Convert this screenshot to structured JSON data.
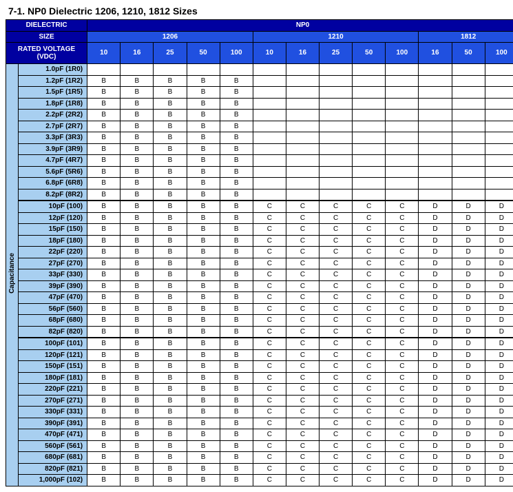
{
  "title": "7-1. NP0 Dielectric 1206, 1210, 1812 Sizes",
  "header": {
    "dielectric": "DIELECTRIC",
    "np0": "NP0",
    "size": "SIZE",
    "sizes": [
      "1206",
      "1210",
      "1812"
    ],
    "rated_voltage": "RATED VOLTAGE (VDC)",
    "voltages_1206": [
      "10",
      "16",
      "25",
      "50",
      "100"
    ],
    "voltages_1210": [
      "10",
      "16",
      "25",
      "50",
      "100"
    ],
    "voltages_1812": [
      "16",
      "50",
      "100"
    ]
  },
  "side_label": "Capacitance",
  "rows": [
    {
      "label": "1.0pF (1R0)",
      "v": [
        "",
        "",
        "",
        "",
        "",
        "",
        "",
        "",
        "",
        "",
        "",
        "",
        ""
      ]
    },
    {
      "label": "1.2pF (1R2)",
      "v": [
        "B",
        "B",
        "B",
        "B",
        "B",
        "",
        "",
        "",
        "",
        "",
        "",
        "",
        ""
      ]
    },
    {
      "label": "1.5pF (1R5)",
      "v": [
        "B",
        "B",
        "B",
        "B",
        "B",
        "",
        "",
        "",
        "",
        "",
        "",
        "",
        ""
      ]
    },
    {
      "label": "1.8pF (1R8)",
      "v": [
        "B",
        "B",
        "B",
        "B",
        "B",
        "",
        "",
        "",
        "",
        "",
        "",
        "",
        ""
      ]
    },
    {
      "label": "2.2pF (2R2)",
      "v": [
        "B",
        "B",
        "B",
        "B",
        "B",
        "",
        "",
        "",
        "",
        "",
        "",
        "",
        ""
      ]
    },
    {
      "label": "2.7pF (2R7)",
      "v": [
        "B",
        "B",
        "B",
        "B",
        "B",
        "",
        "",
        "",
        "",
        "",
        "",
        "",
        ""
      ]
    },
    {
      "label": "3.3pF (3R3)",
      "v": [
        "B",
        "B",
        "B",
        "B",
        "B",
        "",
        "",
        "",
        "",
        "",
        "",
        "",
        ""
      ]
    },
    {
      "label": "3.9pF (3R9)",
      "v": [
        "B",
        "B",
        "B",
        "B",
        "B",
        "",
        "",
        "",
        "",
        "",
        "",
        "",
        ""
      ]
    },
    {
      "label": "4.7pF (4R7)",
      "v": [
        "B",
        "B",
        "B",
        "B",
        "B",
        "",
        "",
        "",
        "",
        "",
        "",
        "",
        ""
      ]
    },
    {
      "label": "5.6pF (5R6)",
      "v": [
        "B",
        "B",
        "B",
        "B",
        "B",
        "",
        "",
        "",
        "",
        "",
        "",
        "",
        ""
      ]
    },
    {
      "label": "6.8pF (6R8)",
      "v": [
        "B",
        "B",
        "B",
        "B",
        "B",
        "",
        "",
        "",
        "",
        "",
        "",
        "",
        ""
      ]
    },
    {
      "label": "8.2pF (8R2)",
      "v": [
        "B",
        "B",
        "B",
        "B",
        "B",
        "",
        "",
        "",
        "",
        "",
        "",
        "",
        ""
      ]
    },
    {
      "label": "10pF (100)",
      "thick": true,
      "v": [
        "B",
        "B",
        "B",
        "B",
        "B",
        "C",
        "C",
        "C",
        "C",
        "C",
        "D",
        "D",
        "D"
      ]
    },
    {
      "label": "12pF (120)",
      "v": [
        "B",
        "B",
        "B",
        "B",
        "B",
        "C",
        "C",
        "C",
        "C",
        "C",
        "D",
        "D",
        "D"
      ]
    },
    {
      "label": "15pF (150)",
      "v": [
        "B",
        "B",
        "B",
        "B",
        "B",
        "C",
        "C",
        "C",
        "C",
        "C",
        "D",
        "D",
        "D"
      ]
    },
    {
      "label": "18pF (180)",
      "v": [
        "B",
        "B",
        "B",
        "B",
        "B",
        "C",
        "C",
        "C",
        "C",
        "C",
        "D",
        "D",
        "D"
      ]
    },
    {
      "label": "22pF (220)",
      "v": [
        "B",
        "B",
        "B",
        "B",
        "B",
        "C",
        "C",
        "C",
        "C",
        "C",
        "D",
        "D",
        "D"
      ]
    },
    {
      "label": "27pF (270)",
      "v": [
        "B",
        "B",
        "B",
        "B",
        "B",
        "C",
        "C",
        "C",
        "C",
        "C",
        "D",
        "D",
        "D"
      ]
    },
    {
      "label": "33pF (330)",
      "v": [
        "B",
        "B",
        "B",
        "B",
        "B",
        "C",
        "C",
        "C",
        "C",
        "C",
        "D",
        "D",
        "D"
      ]
    },
    {
      "label": "39pF (390)",
      "v": [
        "B",
        "B",
        "B",
        "B",
        "B",
        "C",
        "C",
        "C",
        "C",
        "C",
        "D",
        "D",
        "D"
      ]
    },
    {
      "label": "47pF (470)",
      "v": [
        "B",
        "B",
        "B",
        "B",
        "B",
        "C",
        "C",
        "C",
        "C",
        "C",
        "D",
        "D",
        "D"
      ]
    },
    {
      "label": "56pF (560)",
      "v": [
        "B",
        "B",
        "B",
        "B",
        "B",
        "C",
        "C",
        "C",
        "C",
        "C",
        "D",
        "D",
        "D"
      ]
    },
    {
      "label": "68pF (680)",
      "v": [
        "B",
        "B",
        "B",
        "B",
        "B",
        "C",
        "C",
        "C",
        "C",
        "C",
        "D",
        "D",
        "D"
      ]
    },
    {
      "label": "82pF (820)",
      "v": [
        "B",
        "B",
        "B",
        "B",
        "B",
        "C",
        "C",
        "C",
        "C",
        "C",
        "D",
        "D",
        "D"
      ]
    },
    {
      "label": "100pF (101)",
      "thick": true,
      "v": [
        "B",
        "B",
        "B",
        "B",
        "B",
        "C",
        "C",
        "C",
        "C",
        "C",
        "D",
        "D",
        "D"
      ]
    },
    {
      "label": "120pF (121)",
      "v": [
        "B",
        "B",
        "B",
        "B",
        "B",
        "C",
        "C",
        "C",
        "C",
        "C",
        "D",
        "D",
        "D"
      ]
    },
    {
      "label": "150pF (151)",
      "v": [
        "B",
        "B",
        "B",
        "B",
        "B",
        "C",
        "C",
        "C",
        "C",
        "C",
        "D",
        "D",
        "D"
      ]
    },
    {
      "label": "180pF (181)",
      "v": [
        "B",
        "B",
        "B",
        "B",
        "B",
        "C",
        "C",
        "C",
        "C",
        "C",
        "D",
        "D",
        "D"
      ]
    },
    {
      "label": "220pF (221)",
      "v": [
        "B",
        "B",
        "B",
        "B",
        "B",
        "C",
        "C",
        "C",
        "C",
        "C",
        "D",
        "D",
        "D"
      ]
    },
    {
      "label": "270pF  (271)",
      "v": [
        "B",
        "B",
        "B",
        "B",
        "B",
        "C",
        "C",
        "C",
        "C",
        "C",
        "D",
        "D",
        "D"
      ]
    },
    {
      "label": "330pF  (331)",
      "v": [
        "B",
        "B",
        "B",
        "B",
        "B",
        "C",
        "C",
        "C",
        "C",
        "C",
        "D",
        "D",
        "D"
      ]
    },
    {
      "label": "390pF  (391)",
      "v": [
        "B",
        "B",
        "B",
        "B",
        "B",
        "C",
        "C",
        "C",
        "C",
        "C",
        "D",
        "D",
        "D"
      ]
    },
    {
      "label": "470pF  (471)",
      "v": [
        "B",
        "B",
        "B",
        "B",
        "B",
        "C",
        "C",
        "C",
        "C",
        "C",
        "D",
        "D",
        "D"
      ]
    },
    {
      "label": "560pF  (561)",
      "v": [
        "B",
        "B",
        "B",
        "B",
        "B",
        "C",
        "C",
        "C",
        "C",
        "C",
        "D",
        "D",
        "D"
      ]
    },
    {
      "label": "680pF  (681)",
      "v": [
        "B",
        "B",
        "B",
        "B",
        "B",
        "C",
        "C",
        "C",
        "C",
        "C",
        "D",
        "D",
        "D"
      ]
    },
    {
      "label": "820pF  (821)",
      "v": [
        "B",
        "B",
        "B",
        "B",
        "B",
        "C",
        "C",
        "C",
        "C",
        "C",
        "D",
        "D",
        "D"
      ]
    },
    {
      "label": "1,000pF  (102)",
      "v": [
        "B",
        "B",
        "B",
        "B",
        "B",
        "C",
        "C",
        "C",
        "C",
        "C",
        "D",
        "D",
        "D"
      ]
    }
  ]
}
